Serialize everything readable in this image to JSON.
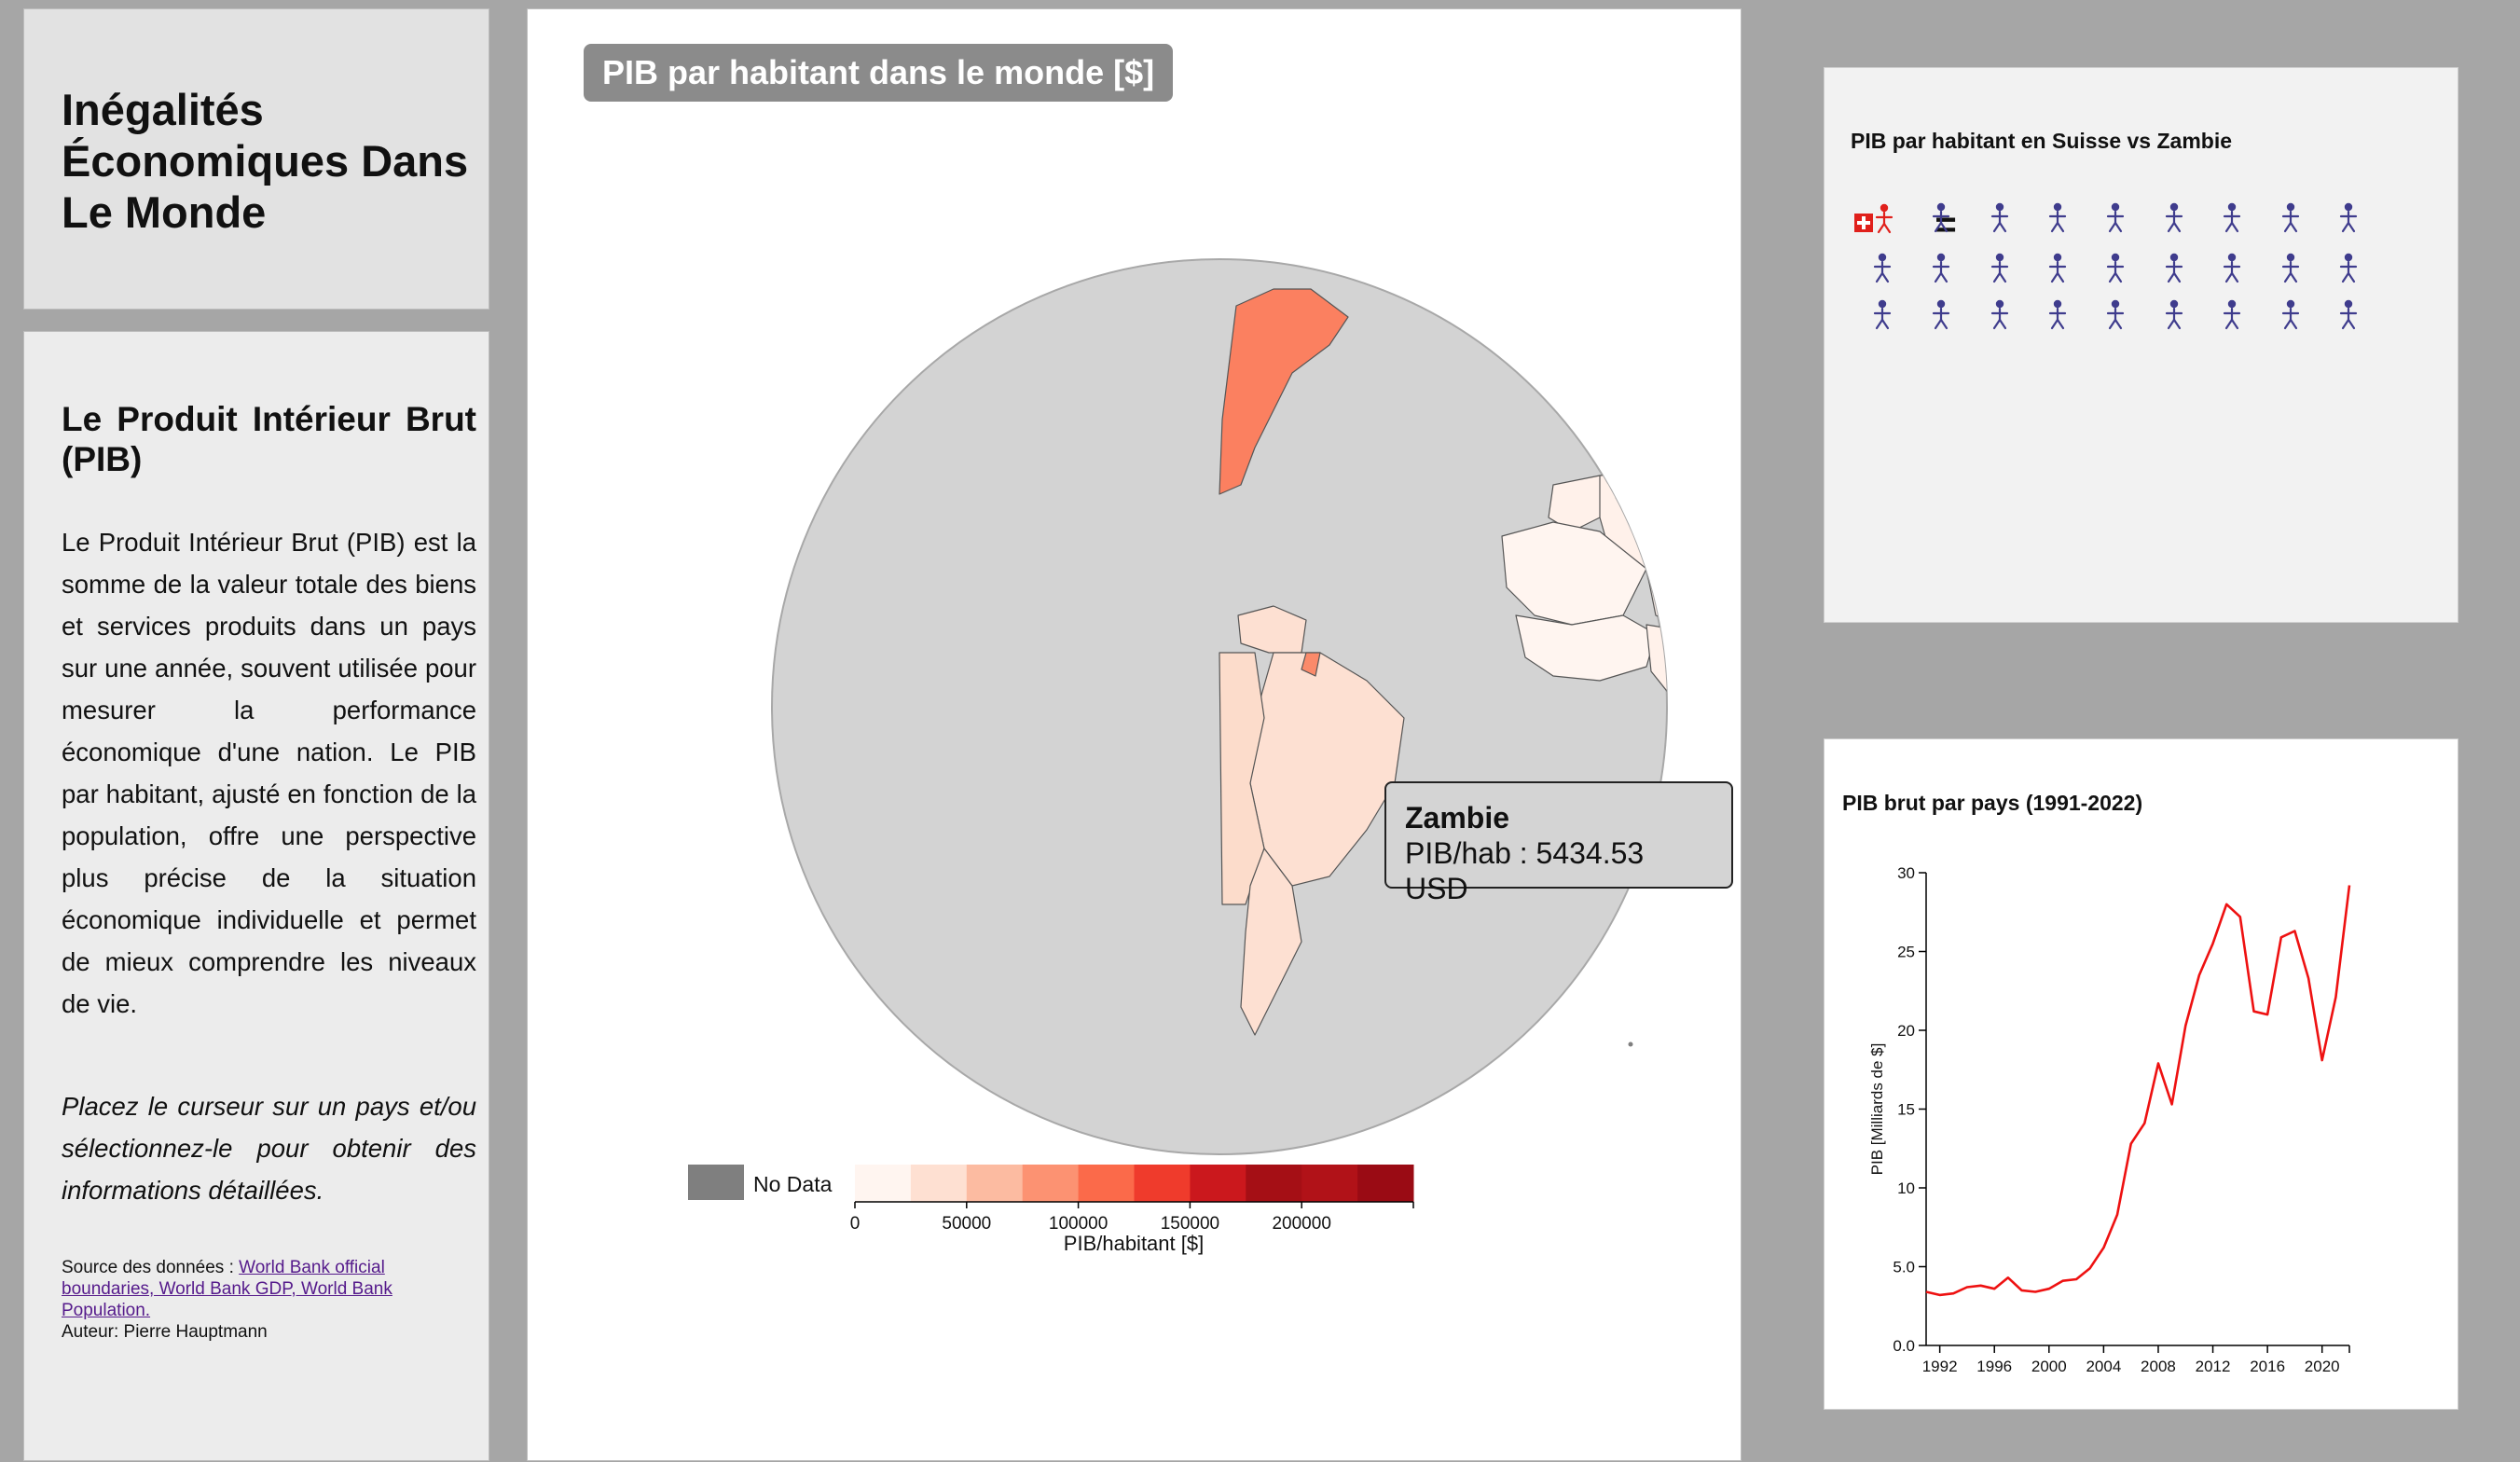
{
  "sidebar": {
    "title": "Inégalités Économiques Dans Le Monde",
    "section_heading": "Le Produit Intérieur Brut (PIB)",
    "description": "Le Produit Intérieur Brut (PIB) est la somme de la valeur totale des biens et services produits dans un pays sur une année, souvent utilisée pour mesurer la performance économique d'une nation. Le PIB par habitant, ajusté en fonction de la population, offre une perspective plus précise de la situation économique individuelle et permet de mieux comprendre les niveaux de vie.",
    "instruction": "Placez le curseur sur un pays et/ou sélectionnez-le pour obtenir des informations détaillées.",
    "source_prefix": "Source des données : ",
    "source_links": "World Bank official boundaries, World Bank GDP, World Bank Population.",
    "author": "Auteur: Pierre Hauptmann"
  },
  "map": {
    "title": "PIB par habitant dans le monde [$]",
    "selected_country": "Zambie",
    "selected_color": "#3f3c8d",
    "tooltip": {
      "country": "Zambie",
      "value_text": "PIB/hab : 5434.53 USD"
    },
    "legend": {
      "no_data_label": "No Data",
      "no_data_color": "#7f7f7f",
      "tick_labels": [
        "0",
        "50000",
        "100000",
        "150000",
        "200000"
      ],
      "ticks": [
        0,
        50000,
        100000,
        150000,
        200000
      ],
      "axis_label": "PIB/habitant [$]",
      "domain": [
        0,
        250000
      ],
      "colors": [
        "#fff5f0",
        "#fee0d2",
        "#fcbba1",
        "#fc9272",
        "#fb6a4a",
        "#ef3b2c",
        "#cb181d",
        "#a50f15",
        "#b11218",
        "#9a0b14"
      ]
    }
  },
  "pictogram": {
    "title": "PIB par habitant en Suisse vs Zambie",
    "equals": "=",
    "count": 26,
    "icon": "person-icon",
    "icon_color": "#3f3c8d",
    "swiss_color": "#e0201b"
  },
  "chart_data": {
    "type": "line",
    "title": "PIB brut par pays (1991-2022)",
    "xlabel": "",
    "ylabel": "PIB [Milliards de $]",
    "xlim": [
      1991,
      2022
    ],
    "ylim": [
      0,
      30
    ],
    "xticks": [
      1992,
      1996,
      2000,
      2004,
      2008,
      2012,
      2016,
      2020
    ],
    "yticks": [
      "0.0",
      "5.0",
      "10",
      "15",
      "20",
      "25",
      "30"
    ],
    "line_color": "#ee1111",
    "series": [
      {
        "x": [
          1991,
          1992,
          1993,
          1994,
          1995,
          1996,
          1997,
          1998,
          1999,
          2000,
          2001,
          2002,
          2003,
          2004,
          2005,
          2006,
          2007,
          2008,
          2009,
          2010,
          2011,
          2012,
          2013,
          2014,
          2015,
          2016,
          2017,
          2018,
          2019,
          2020,
          2021,
          2022
        ],
        "values": [
          3.4,
          3.2,
          3.3,
          3.7,
          3.8,
          3.6,
          4.3,
          3.5,
          3.4,
          3.6,
          4.1,
          4.2,
          4.9,
          6.2,
          8.3,
          12.8,
          14.1,
          17.9,
          15.3,
          20.3,
          23.5,
          25.5,
          28.0,
          27.2,
          21.2,
          21.0,
          25.9,
          26.3,
          23.3,
          18.1,
          22.1,
          29.2
        ]
      }
    ]
  }
}
